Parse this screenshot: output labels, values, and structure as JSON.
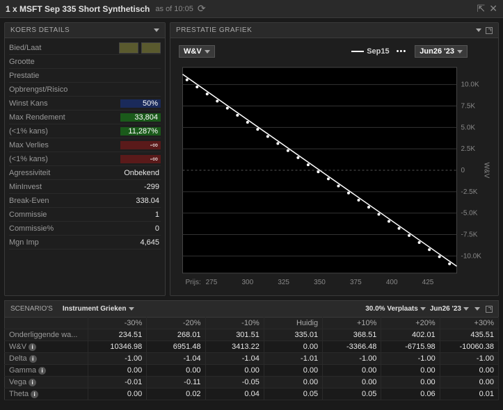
{
  "title": "1 x MSFT Sep 335 Short Synthetisch",
  "asof_label": "as of 10:05",
  "panels": {
    "koers": {
      "title": "KOERS DETAILS"
    },
    "prestatie": {
      "title": "PRESTATIE GRAFIEK"
    },
    "scenario": {
      "title": "SCENARIO'S"
    }
  },
  "koers": {
    "bied_laat_label": "Bied/Laat",
    "grootte_label": "Grootte",
    "prestatie_label": "Prestatie",
    "rows": {
      "opbrengst": {
        "label": "Opbrengst/Risico",
        "value": "",
        "color": "#1a2a5a"
      },
      "winstkans": {
        "label": "Winst Kans",
        "value": "50%",
        "color": "#1a2a5a"
      },
      "maxrend": {
        "label": "Max Rendement",
        "value": "33,804",
        "color": "#1a5a1a"
      },
      "maxrend2": {
        "label": "(<1% kans)",
        "value": "11,287%",
        "color": "#1a5a1a"
      },
      "maxverlies": {
        "label": "Max Verlies",
        "value": "-∞",
        "color": "#5a1a1a"
      },
      "maxverlies2": {
        "label": "(<1% kans)",
        "value": "-∞",
        "color": "#5a1a1a"
      },
      "agress": {
        "label": "Agressiviteit",
        "value": "Onbekend"
      },
      "mininvest": {
        "label": "MinInvest",
        "value": "-299"
      },
      "breakeven": {
        "label": "Break-Even",
        "value": "338.04"
      },
      "commissie": {
        "label": "Commissie",
        "value": "1"
      },
      "commissiep": {
        "label": "Commissie%",
        "value": "0"
      },
      "mgnimp": {
        "label": "Mgn Imp",
        "value": "4,645"
      }
    }
  },
  "chart": {
    "dd_left": "W&V",
    "legend_solid": "Sep15",
    "legend_dotted": "Jun26 '23",
    "x_label": "Prijs:",
    "y_label": "W&V",
    "x_ticks": [
      275,
      300,
      325,
      350,
      375,
      400,
      425
    ],
    "y_ticks": [
      {
        "v": 10000,
        "label": "10.0K"
      },
      {
        "v": 7500,
        "label": "7.5K"
      },
      {
        "v": 5000,
        "label": "5.0K"
      },
      {
        "v": 2500,
        "label": "2.5K"
      },
      {
        "v": 0,
        "label": "0"
      },
      {
        "v": -2500,
        "label": "-2.5K"
      },
      {
        "v": -5000,
        "label": "-5.0K"
      },
      {
        "v": -7500,
        "label": "-7.5K"
      },
      {
        "v": -10000,
        "label": "-10.0K"
      }
    ],
    "x_min": 255,
    "x_max": 445,
    "y_min": -12000,
    "y_max": 12000,
    "solid_series": [
      [
        255,
        11200
      ],
      [
        445,
        -11200
      ]
    ],
    "dot_series_x": [
      258,
      265,
      272,
      279,
      286,
      293,
      300,
      307,
      314,
      321,
      328,
      335,
      342,
      349,
      356,
      363,
      370,
      377,
      384,
      391,
      398,
      405,
      412,
      419,
      426,
      433,
      440
    ],
    "plot": {
      "bg": "#000000",
      "axis_color": "#888888",
      "grid_color": "#333333",
      "line_color": "#ffffff"
    }
  },
  "scenario": {
    "ctrl_instrument": "Instrument Grieken",
    "ctrl_move": "30.0% Verplaats",
    "ctrl_date": "Jun26 '23",
    "columns": [
      "-30%",
      "-20%",
      "-10%",
      "Huidig",
      "+10%",
      "+20%",
      "+30%"
    ],
    "rows": [
      {
        "label": "Onderliggende wa...",
        "info": false,
        "cells": [
          "234.51",
          "268.01",
          "301.51",
          "335.01",
          "368.51",
          "402.01",
          "435.51"
        ]
      },
      {
        "label": "W&V",
        "info": true,
        "cells": [
          "10346.98",
          "6951.48",
          "3413.22",
          "0.00",
          "-3366.48",
          "-6715.98",
          "-10060.38"
        ]
      },
      {
        "label": "Delta",
        "info": true,
        "cells": [
          "-1.00",
          "-1.04",
          "-1.04",
          "-1.01",
          "-1.00",
          "-1.00",
          "-1.00"
        ]
      },
      {
        "label": "Gamma",
        "info": true,
        "cells": [
          "0.00",
          "0.00",
          "0.00",
          "0.00",
          "0.00",
          "0.00",
          "0.00"
        ]
      },
      {
        "label": "Vega",
        "info": true,
        "cells": [
          "-0.01",
          "-0.11",
          "-0.05",
          "0.00",
          "0.00",
          "0.00",
          "0.00"
        ]
      },
      {
        "label": "Theta",
        "info": true,
        "cells": [
          "0.00",
          "0.02",
          "0.04",
          "0.05",
          "0.05",
          "0.06",
          "0.01"
        ]
      }
    ]
  }
}
